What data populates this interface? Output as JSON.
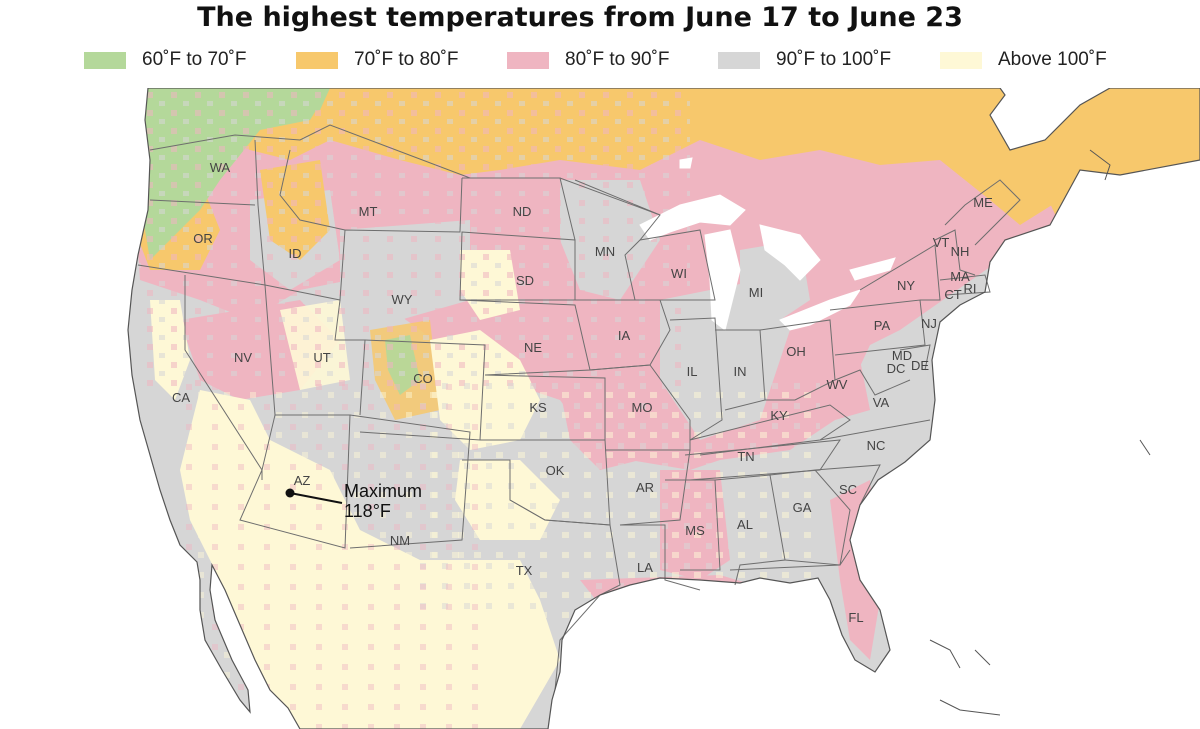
{
  "title": "The highest temperatures from June 17 to June 23",
  "legend": [
    {
      "label": "60˚F to 70˚F",
      "color": "#b4d89a"
    },
    {
      "label": "70˚F to 80˚F",
      "color": "#f7c86c"
    },
    {
      "label": "80˚F to 90˚F",
      "color": "#efb5c1"
    },
    {
      "label": "90˚F to 100˚F",
      "color": "#d6d6d6"
    },
    {
      "label": "Above 100˚F",
      "color": "#fef8d6"
    }
  ],
  "colors": {
    "water": "#ffffff",
    "border": "#6e6e6e",
    "coast": "#555555"
  },
  "states": {
    "WA": "WA",
    "OR": "OR",
    "CA": "CA",
    "ID": "ID",
    "NV": "NV",
    "MT": "MT",
    "WY": "WY",
    "UT": "UT",
    "AZ": "AZ",
    "CO": "CO",
    "NM": "NM",
    "ND": "ND",
    "SD": "SD",
    "NE": "NE",
    "KS": "KS",
    "OK": "OK",
    "TX": "TX",
    "MN": "MN",
    "IA": "IA",
    "MO": "MO",
    "AR": "AR",
    "LA": "LA",
    "WI": "WI",
    "IL": "IL",
    "MI": "MI",
    "IN": "IN",
    "OH": "OH",
    "KY": "KY",
    "TN": "TN",
    "MS": "MS",
    "AL": "AL",
    "GA": "GA",
    "FL": "FL",
    "SC": "SC",
    "NC": "NC",
    "VA": "VA",
    "WV": "WV",
    "PA": "PA",
    "NY": "NY",
    "VT": "VT",
    "NH": "NH",
    "ME": "ME",
    "MA": "MA",
    "CT": "CT",
    "RI": "RI",
    "NJ": "NJ",
    "MD": "MD",
    "DE": "DE",
    "DC": "DC"
  },
  "annotation": {
    "line1": "Maximum",
    "line2": "118°F",
    "state": "AZ",
    "value_f": 118
  }
}
